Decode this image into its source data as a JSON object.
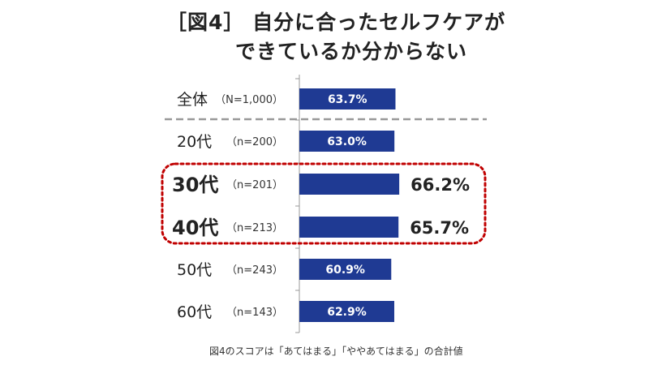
{
  "title": {
    "line1": "［図4］ 自分に合ったセルフケアが",
    "line2": "できているか分からない"
  },
  "footnote": "図4のスコアは「あてはまる」「ややあてはまる」の合計値",
  "colors": {
    "bar": "#1f3a93",
    "highlight_border": "#c00000",
    "separator": "#999999",
    "axis": "#999999"
  },
  "chart_data": {
    "type": "bar",
    "orientation": "horizontal",
    "categories": [
      "全体",
      "20代",
      "30代",
      "40代",
      "50代",
      "60代"
    ],
    "sample_sizes": [
      "（N=1,000）",
      "（n=200）",
      "（n=201）",
      "（n=213）",
      "（n=243）",
      "（n=143）"
    ],
    "values": [
      63.7,
      63.0,
      66.2,
      65.7,
      60.9,
      62.9
    ],
    "value_labels": [
      "63.7%",
      "63.0%",
      "66.2%",
      "65.7%",
      "60.9%",
      "62.9%"
    ],
    "highlighted_categories": [
      "30代",
      "40代"
    ],
    "xlim": [
      0,
      100
    ],
    "unit": "%",
    "grid": false
  }
}
